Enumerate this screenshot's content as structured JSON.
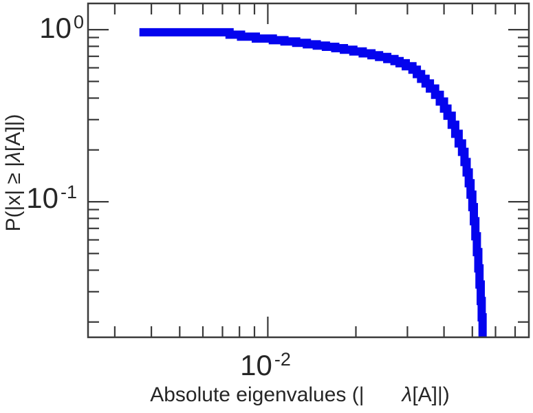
{
  "labels": {
    "y_parts": [
      "P(|x| ≥ |",
      "λ",
      "[A]|)"
    ],
    "x_parts": [
      "Absolute eigenvalues (|",
      "λ",
      "[A]|)"
    ]
  },
  "ticks": {
    "y": [
      {
        "base": "10",
        "exp": "0",
        "value": 1.0
      },
      {
        "base": "10",
        "exp": "-1",
        "value": 0.1
      }
    ],
    "x": [
      {
        "base": "10",
        "exp": "-2",
        "value": 0.01
      }
    ]
  },
  "chart_data": {
    "type": "line",
    "subtype": "ccdf-step",
    "title": "",
    "xlabel": "Absolute eigenvalues (|   λ[A]|)",
    "ylabel": "P(|x| ≥ |λ[A]|)",
    "x_scale": "log",
    "y_scale": "log",
    "xlim": [
      0.00243,
      0.078
    ],
    "ylim": [
      0.0163,
      1.42
    ],
    "grid": false,
    "legend": "none",
    "frame_color": "#3a3a3a",
    "series": [
      {
        "name": "absolute-eigenvalue-ccdf",
        "color": "#0404ee",
        "line_width": 12,
        "steps": [
          [
            0.00364,
            0.965
          ],
          [
            0.0074,
            0.935
          ],
          [
            0.0081,
            0.91
          ],
          [
            0.0091,
            0.888
          ],
          [
            0.0104,
            0.868
          ],
          [
            0.0114,
            0.853
          ],
          [
            0.0125,
            0.838
          ],
          [
            0.0136,
            0.822
          ],
          [
            0.0147,
            0.808
          ],
          [
            0.0158,
            0.795
          ],
          [
            0.017,
            0.78
          ],
          [
            0.0182,
            0.764
          ],
          [
            0.0196,
            0.747
          ],
          [
            0.0211,
            0.728
          ],
          [
            0.0226,
            0.71
          ],
          [
            0.024,
            0.694
          ],
          [
            0.0256,
            0.675
          ],
          [
            0.0271,
            0.657
          ],
          [
            0.0282,
            0.638
          ],
          [
            0.0296,
            0.613
          ],
          [
            0.0312,
            0.585
          ],
          [
            0.0323,
            0.552
          ],
          [
            0.0334,
            0.518
          ],
          [
            0.0346,
            0.487
          ],
          [
            0.0358,
            0.455
          ],
          [
            0.0373,
            0.418
          ],
          [
            0.0387,
            0.382
          ],
          [
            0.04,
            0.348
          ],
          [
            0.0411,
            0.316
          ],
          [
            0.0425,
            0.28
          ],
          [
            0.0437,
            0.248
          ],
          [
            0.0449,
            0.218
          ],
          [
            0.0461,
            0.195
          ],
          [
            0.047,
            0.17
          ],
          [
            0.0478,
            0.148
          ],
          [
            0.0486,
            0.128
          ],
          [
            0.0493,
            0.11
          ],
          [
            0.05,
            0.093
          ],
          [
            0.0506,
            0.077
          ],
          [
            0.0512,
            0.063
          ],
          [
            0.0518,
            0.051
          ],
          [
            0.0524,
            0.041
          ],
          [
            0.0529,
            0.033
          ],
          [
            0.0534,
            0.0265
          ],
          [
            0.0538,
            0.0213
          ],
          [
            0.0542,
            0.0163
          ]
        ]
      }
    ]
  }
}
